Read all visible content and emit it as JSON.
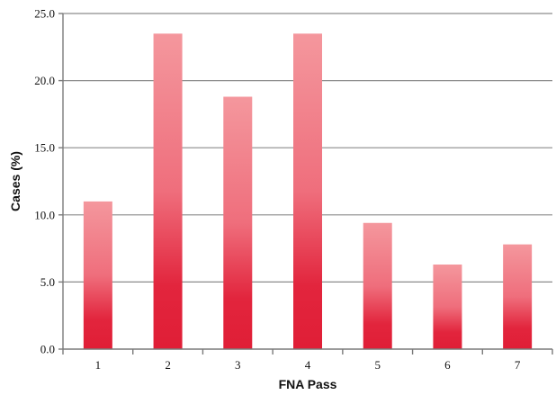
{
  "chart_data": {
    "type": "bar",
    "title": "",
    "xlabel": "FNA Pass",
    "ylabel": "Cases (%)",
    "categories": [
      "1",
      "2",
      "3",
      "4",
      "5",
      "6",
      "7"
    ],
    "values": [
      11.0,
      23.5,
      18.8,
      23.5,
      9.4,
      6.3,
      7.8
    ],
    "ylim": [
      0,
      25
    ],
    "yticks": [
      "0.0",
      "5.0",
      "10.0",
      "15.0",
      "20.0",
      "25.0"
    ],
    "grid": true,
    "legend": "none",
    "colors": {
      "bar_top": "#f4979d",
      "bar_bottom": "#e01e36",
      "grid": "#8c8c8c"
    }
  }
}
